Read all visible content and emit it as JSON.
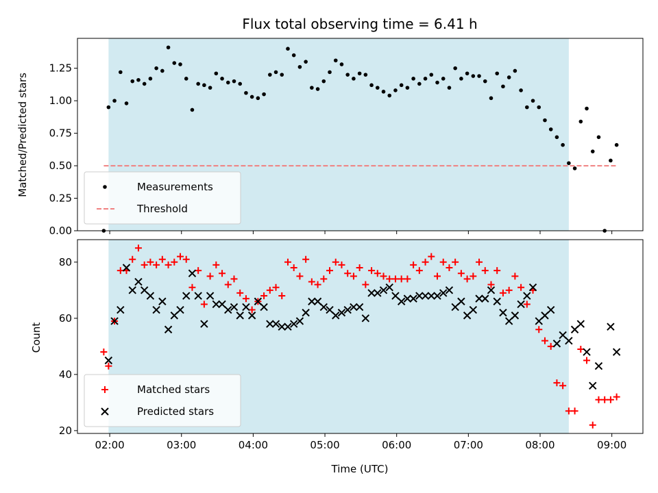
{
  "chart_data": [
    {
      "type": "scatter",
      "title": "Flux total observing time = 6.41 h",
      "xlabel": "",
      "ylabel": "Matched/Predicted stars",
      "ylim": [
        0,
        1.48
      ],
      "xlim": [
        "01:33",
        "09:26"
      ],
      "yticks": [
        "0.00",
        "0.25",
        "0.50",
        "0.75",
        "1.00",
        "1.25"
      ],
      "observing_window": {
        "start": "01:59",
        "end": "08:24",
        "color": "#add8e6"
      },
      "legend_placement": "lower-left",
      "series": [
        {
          "name": "Measurements",
          "marker": "dot",
          "color": "#000000",
          "points": [
            [
              "01:55",
              0.0
            ],
            [
              "01:59",
              0.95
            ],
            [
              "02:04",
              1.0
            ],
            [
              "02:09",
              1.22
            ],
            [
              "02:14",
              0.98
            ],
            [
              "02:19",
              1.15
            ],
            [
              "02:24",
              1.16
            ],
            [
              "02:29",
              1.13
            ],
            [
              "02:34",
              1.17
            ],
            [
              "02:39",
              1.25
            ],
            [
              "02:44",
              1.23
            ],
            [
              "02:49",
              1.41
            ],
            [
              "02:54",
              1.29
            ],
            [
              "02:59",
              1.28
            ],
            [
              "03:04",
              1.17
            ],
            [
              "03:09",
              0.93
            ],
            [
              "03:14",
              1.13
            ],
            [
              "03:19",
              1.12
            ],
            [
              "03:24",
              1.1
            ],
            [
              "03:29",
              1.21
            ],
            [
              "03:34",
              1.17
            ],
            [
              "03:39",
              1.14
            ],
            [
              "03:44",
              1.15
            ],
            [
              "03:49",
              1.13
            ],
            [
              "03:54",
              1.06
            ],
            [
              "03:59",
              1.03
            ],
            [
              "04:04",
              1.02
            ],
            [
              "04:09",
              1.05
            ],
            [
              "04:14",
              1.2
            ],
            [
              "04:19",
              1.22
            ],
            [
              "04:24",
              1.2
            ],
            [
              "04:29",
              1.4
            ],
            [
              "04:34",
              1.35
            ],
            [
              "04:39",
              1.26
            ],
            [
              "04:44",
              1.3
            ],
            [
              "04:49",
              1.1
            ],
            [
              "04:54",
              1.09
            ],
            [
              "04:59",
              1.15
            ],
            [
              "05:04",
              1.22
            ],
            [
              "05:09",
              1.31
            ],
            [
              "05:14",
              1.28
            ],
            [
              "05:19",
              1.2
            ],
            [
              "05:24",
              1.17
            ],
            [
              "05:29",
              1.21
            ],
            [
              "05:34",
              1.2
            ],
            [
              "05:39",
              1.12
            ],
            [
              "05:44",
              1.1
            ],
            [
              "05:49",
              1.07
            ],
            [
              "05:54",
              1.04
            ],
            [
              "05:59",
              1.08
            ],
            [
              "06:04",
              1.12
            ],
            [
              "06:09",
              1.1
            ],
            [
              "06:14",
              1.17
            ],
            [
              "06:19",
              1.13
            ],
            [
              "06:24",
              1.17
            ],
            [
              "06:29",
              1.2
            ],
            [
              "06:34",
              1.14
            ],
            [
              "06:39",
              1.17
            ],
            [
              "06:44",
              1.1
            ],
            [
              "06:49",
              1.25
            ],
            [
              "06:54",
              1.17
            ],
            [
              "06:59",
              1.21
            ],
            [
              "07:04",
              1.19
            ],
            [
              "07:09",
              1.19
            ],
            [
              "07:14",
              1.15
            ],
            [
              "07:19",
              1.02
            ],
            [
              "07:24",
              1.21
            ],
            [
              "07:29",
              1.11
            ],
            [
              "07:34",
              1.18
            ],
            [
              "07:39",
              1.23
            ],
            [
              "07:44",
              1.08
            ],
            [
              "07:49",
              0.95
            ],
            [
              "07:54",
              1.0
            ],
            [
              "07:59",
              0.95
            ],
            [
              "08:04",
              0.85
            ],
            [
              "08:09",
              0.78
            ],
            [
              "08:14",
              0.72
            ],
            [
              "08:19",
              0.66
            ],
            [
              "08:24",
              0.52
            ],
            [
              "08:29",
              0.48
            ],
            [
              "08:34",
              0.84
            ],
            [
              "08:39",
              0.94
            ],
            [
              "08:44",
              0.61
            ],
            [
              "08:49",
              0.72
            ],
            [
              "08:54",
              0.0
            ],
            [
              "08:59",
              0.54
            ],
            [
              "09:04",
              0.66
            ]
          ]
        },
        {
          "name": "Threshold",
          "marker": "dashed-line",
          "color": "#f08080",
          "points": [
            [
              "01:55",
              0.5
            ],
            [
              "09:04",
              0.5
            ]
          ]
        }
      ]
    },
    {
      "type": "scatter",
      "title": "",
      "xlabel": "Time (UTC)",
      "ylabel": "Count",
      "ylim": [
        19,
        88
      ],
      "xlim": [
        "01:33",
        "09:26"
      ],
      "yticks": [
        "20",
        "40",
        "60",
        "80"
      ],
      "xticks": [
        "02:00",
        "03:00",
        "04:00",
        "05:00",
        "06:00",
        "07:00",
        "08:00",
        "09:00"
      ],
      "observing_window": {
        "start": "01:59",
        "end": "08:24",
        "color": "#add8e6"
      },
      "legend_placement": "lower-left",
      "series": [
        {
          "name": "Matched stars",
          "marker": "plus",
          "color": "#ff0000",
          "points": [
            [
              "01:55",
              48
            ],
            [
              "01:59",
              43
            ],
            [
              "02:04",
              59
            ],
            [
              "02:09",
              77
            ],
            [
              "02:14",
              77
            ],
            [
              "02:19",
              81
            ],
            [
              "02:24",
              85
            ],
            [
              "02:29",
              79
            ],
            [
              "02:34",
              80
            ],
            [
              "02:39",
              79
            ],
            [
              "02:44",
              81
            ],
            [
              "02:49",
              79
            ],
            [
              "02:54",
              80
            ],
            [
              "02:59",
              82
            ],
            [
              "03:04",
              81
            ],
            [
              "03:09",
              71
            ],
            [
              "03:14",
              77
            ],
            [
              "03:19",
              65
            ],
            [
              "03:24",
              75
            ],
            [
              "03:29",
              79
            ],
            [
              "03:34",
              76
            ],
            [
              "03:39",
              72
            ],
            [
              "03:44",
              74
            ],
            [
              "03:49",
              69
            ],
            [
              "03:54",
              67
            ],
            [
              "03:59",
              63
            ],
            [
              "04:04",
              66
            ],
            [
              "04:09",
              68
            ],
            [
              "04:14",
              70
            ],
            [
              "04:19",
              71
            ],
            [
              "04:24",
              68
            ],
            [
              "04:29",
              80
            ],
            [
              "04:34",
              78
            ],
            [
              "04:39",
              75
            ],
            [
              "04:44",
              81
            ],
            [
              "04:49",
              73
            ],
            [
              "04:54",
              72
            ],
            [
              "04:59",
              74
            ],
            [
              "05:04",
              77
            ],
            [
              "05:09",
              80
            ],
            [
              "05:14",
              79
            ],
            [
              "05:19",
              76
            ],
            [
              "05:24",
              75
            ],
            [
              "05:29",
              78
            ],
            [
              "05:34",
              72
            ],
            [
              "05:39",
              77
            ],
            [
              "05:44",
              76
            ],
            [
              "05:49",
              75
            ],
            [
              "05:54",
              74
            ],
            [
              "05:59",
              74
            ],
            [
              "06:04",
              74
            ],
            [
              "06:09",
              74
            ],
            [
              "06:14",
              79
            ],
            [
              "06:19",
              77
            ],
            [
              "06:24",
              80
            ],
            [
              "06:29",
              82
            ],
            [
              "06:34",
              75
            ],
            [
              "06:39",
              80
            ],
            [
              "06:44",
              78
            ],
            [
              "06:49",
              80
            ],
            [
              "06:54",
              76
            ],
            [
              "06:59",
              74
            ],
            [
              "07:04",
              75
            ],
            [
              "07:09",
              80
            ],
            [
              "07:14",
              77
            ],
            [
              "07:19",
              72
            ],
            [
              "07:24",
              77
            ],
            [
              "07:29",
              69
            ],
            [
              "07:34",
              70
            ],
            [
              "07:39",
              75
            ],
            [
              "07:44",
              71
            ],
            [
              "07:49",
              65
            ],
            [
              "07:54",
              70
            ],
            [
              "07:59",
              56
            ],
            [
              "08:04",
              52
            ],
            [
              "08:09",
              50
            ],
            [
              "08:14",
              37
            ],
            [
              "08:19",
              36
            ],
            [
              "08:24",
              27
            ],
            [
              "08:29",
              27
            ],
            [
              "08:34",
              49
            ],
            [
              "08:39",
              45
            ],
            [
              "08:44",
              22
            ],
            [
              "08:49",
              31
            ],
            [
              "08:54",
              31
            ],
            [
              "08:59",
              31
            ],
            [
              "09:04",
              32
            ]
          ]
        },
        {
          "name": "Predicted stars",
          "marker": "cross",
          "color": "#000000",
          "points": [
            [
              "01:59",
              45
            ],
            [
              "02:04",
              59
            ],
            [
              "02:09",
              63
            ],
            [
              "02:14",
              78
            ],
            [
              "02:19",
              70
            ],
            [
              "02:24",
              73
            ],
            [
              "02:29",
              70
            ],
            [
              "02:34",
              68
            ],
            [
              "02:39",
              63
            ],
            [
              "02:44",
              66
            ],
            [
              "02:49",
              56
            ],
            [
              "02:54",
              61
            ],
            [
              "02:59",
              63
            ],
            [
              "03:04",
              68
            ],
            [
              "03:09",
              76
            ],
            [
              "03:14",
              68
            ],
            [
              "03:19",
              58
            ],
            [
              "03:24",
              68
            ],
            [
              "03:29",
              65
            ],
            [
              "03:34",
              65
            ],
            [
              "03:39",
              63
            ],
            [
              "03:44",
              64
            ],
            [
              "03:49",
              61
            ],
            [
              "03:54",
              64
            ],
            [
              "03:59",
              61
            ],
            [
              "04:04",
              66
            ],
            [
              "04:09",
              64
            ],
            [
              "04:14",
              58
            ],
            [
              "04:19",
              58
            ],
            [
              "04:24",
              57
            ],
            [
              "04:29",
              57
            ],
            [
              "04:34",
              58
            ],
            [
              "04:39",
              59
            ],
            [
              "04:44",
              62
            ],
            [
              "04:49",
              66
            ],
            [
              "04:54",
              66
            ],
            [
              "04:59",
              64
            ],
            [
              "05:04",
              63
            ],
            [
              "05:09",
              61
            ],
            [
              "05:14",
              62
            ],
            [
              "05:19",
              63
            ],
            [
              "05:24",
              64
            ],
            [
              "05:29",
              64
            ],
            [
              "05:34",
              60
            ],
            [
              "05:39",
              69
            ],
            [
              "05:44",
              69
            ],
            [
              "05:49",
              70
            ],
            [
              "05:54",
              71
            ],
            [
              "05:59",
              68
            ],
            [
              "06:04",
              66
            ],
            [
              "06:09",
              67
            ],
            [
              "06:14",
              67
            ],
            [
              "06:19",
              68
            ],
            [
              "06:24",
              68
            ],
            [
              "06:29",
              68
            ],
            [
              "06:34",
              68
            ],
            [
              "06:39",
              69
            ],
            [
              "06:44",
              70
            ],
            [
              "06:49",
              64
            ],
            [
              "06:54",
              66
            ],
            [
              "06:59",
              61
            ],
            [
              "07:04",
              63
            ],
            [
              "07:09",
              67
            ],
            [
              "07:14",
              67
            ],
            [
              "07:19",
              70
            ],
            [
              "07:24",
              66
            ],
            [
              "07:29",
              62
            ],
            [
              "07:34",
              59
            ],
            [
              "07:39",
              61
            ],
            [
              "07:44",
              65
            ],
            [
              "07:49",
              68
            ],
            [
              "07:54",
              71
            ],
            [
              "07:59",
              59
            ],
            [
              "08:04",
              61
            ],
            [
              "08:09",
              63
            ],
            [
              "08:14",
              51
            ],
            [
              "08:19",
              54
            ],
            [
              "08:24",
              52
            ],
            [
              "08:29",
              56
            ],
            [
              "08:34",
              58
            ],
            [
              "08:39",
              48
            ],
            [
              "08:44",
              36
            ],
            [
              "08:49",
              43
            ],
            [
              "08:59",
              57
            ],
            [
              "09:04",
              48
            ]
          ]
        }
      ]
    }
  ]
}
